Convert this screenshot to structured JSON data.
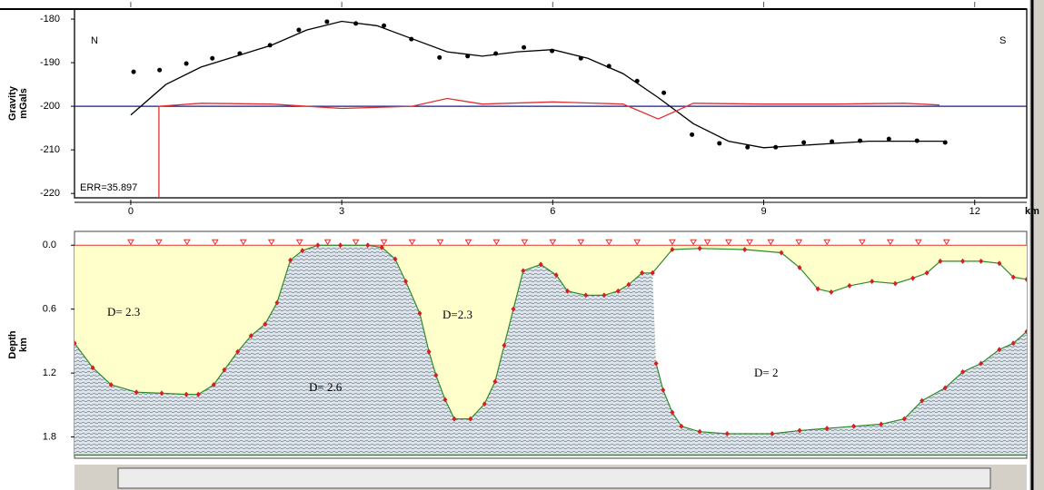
{
  "chart_data": [
    {
      "type": "profile",
      "ylabel": [
        "Gravity",
        "mGals"
      ],
      "annotations": [
        "N",
        "S",
        "ERR=35.897"
      ],
      "xlabel": "km",
      "xlim": [
        -0.8,
        12.74
      ],
      "xticks": [
        0,
        3,
        6,
        9,
        12
      ],
      "ylim": [
        -221,
        -177.7
      ],
      "yticks": [
        -180,
        -190,
        -200,
        -210,
        -220
      ],
      "hline": {
        "value": -200,
        "color": "#1a1a8c"
      },
      "series": [
        {
          "style": "dots",
          "color": "#000000",
          "x": [
            0.04,
            0.41,
            0.79,
            1.16,
            1.55,
            1.98,
            2.39,
            2.79,
            3.2,
            3.6,
            3.99,
            4.39,
            4.79,
            5.19,
            5.59,
            5.99,
            6.4,
            6.8,
            7.2,
            7.58,
            7.98,
            8.37,
            8.77,
            9.17,
            9.57,
            9.97,
            10.37,
            10.78,
            11.18,
            11.58
          ],
          "values": [
            -192.1,
            -191.7,
            -190.2,
            -189.0,
            -187.9,
            -186.0,
            -182.5,
            -180.6,
            -181.0,
            -181.5,
            -184.6,
            -188.8,
            -188.5,
            -187.9,
            -186.5,
            -187.3,
            -189.0,
            -190.8,
            -194.2,
            -196.9,
            -206.5,
            -208.5,
            -209.4,
            -209.4,
            -208.3,
            -208.1,
            -207.9,
            -207.5,
            -207.9,
            -208.3
          ]
        },
        {
          "style": "line",
          "color": "#000000",
          "x": [
            0,
            0.5,
            1,
            1.5,
            2,
            2.5,
            3,
            3.5,
            4,
            4.5,
            5,
            5.5,
            6,
            6.5,
            7,
            7.5,
            8,
            8.5,
            9,
            9.5,
            10,
            10.5,
            11,
            11.6
          ],
          "values": [
            -202,
            -195,
            -191,
            -188.5,
            -186,
            -182.5,
            -180.5,
            -181.5,
            -184.5,
            -187.5,
            -188.5,
            -187.5,
            -187,
            -189,
            -192.5,
            -198,
            -204,
            -208,
            -209.5,
            -209,
            -208.5,
            -208,
            -208,
            -208
          ]
        },
        {
          "style": "line",
          "color": "#e03030",
          "x": [
            0.4,
            0.4,
            1,
            2,
            3,
            4,
            4.5,
            5,
            6,
            7,
            7.5,
            8,
            9,
            10,
            11,
            11.5
          ],
          "values": [
            -221,
            -200,
            -199.3,
            -199.5,
            -200.5,
            -200,
            -198.2,
            -199.5,
            -199,
            -199.5,
            -202.9,
            -199.3,
            -199.5,
            -199.5,
            -199.3,
            -199.7
          ]
        }
      ]
    },
    {
      "type": "section",
      "ylabel": [
        "Depth",
        "km"
      ],
      "annotations": [
        "D= 2.3",
        "D= 2.6",
        "D=2.3",
        "D= 2"
      ],
      "xlim": [
        -0.8,
        12.74
      ],
      "ylim": [
        -0.13,
        2.0
      ],
      "inverted": true,
      "yticks": [
        {
          "value": 0,
          "label": "0.0"
        },
        0.6,
        1.2,
        1.8
      ],
      "base": 1.97,
      "stations": [
        0,
        0.4,
        0.8,
        1.2,
        1.6,
        2.0,
        2.4,
        2.8,
        3.2,
        3.6,
        4.0,
        4.4,
        4.8,
        5.2,
        5.6,
        6.0,
        6.4,
        6.8,
        7.2,
        7.7,
        8.0,
        8.2,
        8.5,
        8.8,
        9.1,
        9.5,
        9.9,
        10.4,
        10.8,
        11.2,
        11.6
      ],
      "boundaries": [
        {
          "color": "#2e8b2e",
          "x": [
            -0.8,
            -0.54,
            -0.28,
            0.08,
            0.44,
            0.79,
            0.96,
            1.18,
            1.33,
            1.52,
            1.71,
            1.91,
            2.08,
            2.27,
            2.44,
            2.66,
            2.98,
            3.37,
            3.57,
            3.76,
            3.91,
            4.11,
            4.24,
            4.34,
            4.47,
            4.6,
            4.83,
            5.03,
            5.18,
            5.31,
            5.44,
            5.58,
            5.83,
            6.05,
            6.21,
            6.47,
            6.73,
            6.93,
            7.08,
            7.27,
            7.42
          ],
          "values": [
            0.92,
            1.15,
            1.31,
            1.38,
            1.39,
            1.4,
            1.4,
            1.31,
            1.17,
            1.0,
            0.85,
            0.74,
            0.54,
            0.14,
            0.05,
            0.0,
            0.0,
            0.0,
            0.02,
            0.13,
            0.34,
            0.64,
            1.0,
            1.22,
            1.45,
            1.63,
            1.63,
            1.49,
            1.28,
            0.94,
            0.6,
            0.24,
            0.18,
            0.28,
            0.43,
            0.47,
            0.47,
            0.43,
            0.37,
            0.26,
            0.26
          ]
        },
        {
          "color": "#2e8b2e",
          "x": [
            7.42,
            7.7,
            8.09,
            8.73,
            9.25,
            9.51,
            9.77,
            9.96,
            10.22,
            10.54,
            10.87,
            11.12,
            11.32,
            11.51,
            11.83,
            12.09,
            12.35,
            12.55,
            12.74
          ],
          "values": [
            0.26,
            0.04,
            0.03,
            0.04,
            0.07,
            0.21,
            0.41,
            0.44,
            0.38,
            0.34,
            0.36,
            0.31,
            0.26,
            0.15,
            0.15,
            0.15,
            0.17,
            0.3,
            0.32
          ]
        },
        {
          "color": "#2e8b2e",
          "x": [
            12.74,
            12.55,
            12.35,
            12.09,
            11.83,
            11.58,
            11.25,
            11.0,
            10.67,
            10.28,
            9.9,
            9.51,
            9.12,
            8.48,
            8.09,
            7.83,
            7.7,
            7.57,
            7.47
          ],
          "values": [
            0.81,
            0.92,
            0.98,
            1.11,
            1.19,
            1.34,
            1.46,
            1.63,
            1.68,
            1.7,
            1.72,
            1.74,
            1.77,
            1.77,
            1.75,
            1.7,
            1.57,
            1.36,
            1.11
          ]
        }
      ]
    }
  ]
}
